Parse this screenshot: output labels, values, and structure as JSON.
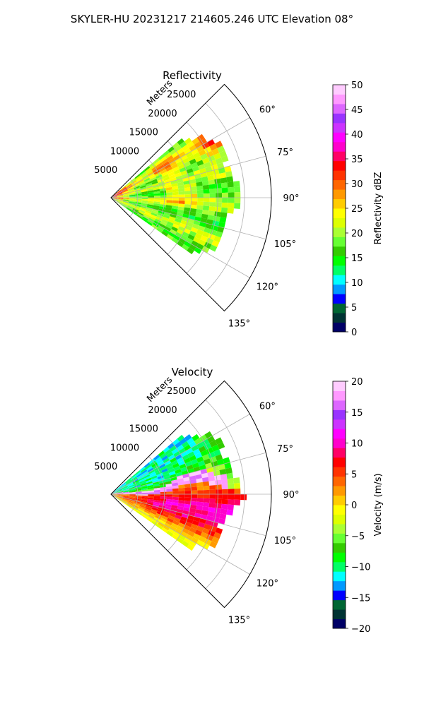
{
  "figure": {
    "title": "SKYLER-HU  20231217  214605.246 UTC Elevation 08°"
  },
  "chart_data": [
    {
      "type": "heatmap",
      "projection": "polar-sector",
      "title": "Reflectivity",
      "range_label": "Meters",
      "range_ticks": [
        5000,
        10000,
        15000,
        20000,
        25000
      ],
      "range_limit": [
        0,
        30000
      ],
      "azimuth_range_deg": [
        45,
        135
      ],
      "azimuth_ticks": [
        "60°",
        "75°",
        "90°",
        "105°",
        "120°",
        "135°"
      ],
      "data_azimuth_range_deg": [
        50,
        125
      ],
      "grid": true,
      "colorbar": {
        "label": "Reflectivity dBZ",
        "min": 0,
        "max": 50,
        "ticks": [
          "0",
          "5",
          "10",
          "15",
          "20",
          "25",
          "30",
          "35",
          "40",
          "45",
          "50"
        ],
        "colors": [
          "#000066",
          "#003333",
          "#006633",
          "#0000ff",
          "#0099ff",
          "#00ffff",
          "#00ff66",
          "#00ff00",
          "#33cc00",
          "#66ff33",
          "#aaff33",
          "#ddff00",
          "#ffff00",
          "#ffcc00",
          "#ff9900",
          "#ff6600",
          "#ff3300",
          "#ff0000",
          "#ff0066",
          "#ff00cc",
          "#ff00ff",
          "#cc33ff",
          "#9933ff",
          "#dd66ff",
          "#ff99ff",
          "#ffccff"
        ]
      },
      "approximate_field": "weak echo 15-25 dBZ across the sector, bands of 30-38 dBZ along the northern edge near azimuth 55-70 deg, up to ~45 dBZ close to the radar"
    },
    {
      "type": "heatmap",
      "projection": "polar-sector",
      "title": "Velocity",
      "range_label": "Meters",
      "range_ticks": [
        5000,
        10000,
        15000,
        20000,
        25000
      ],
      "range_limit": [
        0,
        30000
      ],
      "azimuth_range_deg": [
        45,
        135
      ],
      "azimuth_ticks": [
        "60°",
        "75°",
        "90°",
        "105°",
        "120°",
        "135°"
      ],
      "data_azimuth_range_deg": [
        50,
        125
      ],
      "grid": true,
      "colorbar": {
        "label": "Velocity (m/s)",
        "min": -20,
        "max": 20,
        "ticks": [
          "−20",
          "−15",
          "−10",
          "−5",
          "0",
          "5",
          "10",
          "15",
          "20"
        ],
        "colors": [
          "#000066",
          "#003333",
          "#006633",
          "#0000ff",
          "#0099ff",
          "#00ffff",
          "#00ff66",
          "#00ff00",
          "#33cc00",
          "#66ff33",
          "#aaff33",
          "#ddff00",
          "#ffff00",
          "#ffcc00",
          "#ff9900",
          "#ff6600",
          "#ff3300",
          "#ff0000",
          "#ff0066",
          "#ff00cc",
          "#ff00ff",
          "#cc33ff",
          "#9933ff",
          "#dd66ff",
          "#ff99ff",
          "#ffccff"
        ]
      },
      "approximate_field": "outbound 0-12 m/s south of a boundary near azimuth 80-90 deg, inbound -5 to -12 m/s north of it, folded 15-20 m/s along the boundary"
    }
  ]
}
